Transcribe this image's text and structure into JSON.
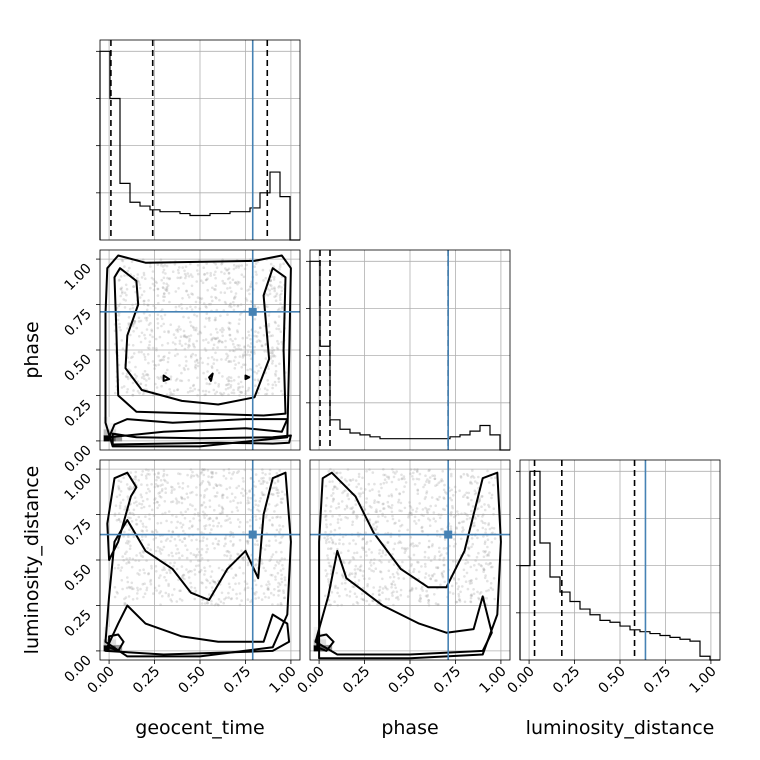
{
  "chart_data": {
    "type": "corner",
    "parameters": [
      "geocent_time",
      "phase",
      "luminosity_distance"
    ],
    "axis_range": [
      -0.05,
      1.05
    ],
    "tick_labels": [
      "0.00",
      "0.25",
      "0.50",
      "0.75",
      "1.00"
    ],
    "tick_values": [
      0,
      0.25,
      0.5,
      0.75,
      1.0
    ],
    "grid": true,
    "colors": {
      "truth": "#4682b4",
      "lines": "#000000",
      "scatter": "#9a9a9a"
    },
    "truths": {
      "geocent_time": 0.79,
      "phase": 0.71,
      "luminosity_distance": 0.64
    },
    "histograms": [
      {
        "parameter": "geocent_time",
        "bin_edges": [
          -0.05,
          0.005,
          0.06,
          0.115,
          0.17,
          0.225,
          0.28,
          0.335,
          0.39,
          0.445,
          0.5,
          0.555,
          0.61,
          0.665,
          0.72,
          0.775,
          0.83,
          0.885,
          0.94,
          0.995,
          1.05
        ],
        "counts": [
          1.0,
          0.75,
          0.3,
          0.2,
          0.18,
          0.16,
          0.15,
          0.15,
          0.14,
          0.13,
          0.13,
          0.14,
          0.14,
          0.15,
          0.15,
          0.17,
          0.25,
          0.36,
          0.23,
          0.0
        ],
        "quantiles": [
          0.01,
          0.24,
          0.87
        ]
      },
      {
        "parameter": "phase",
        "bin_edges": [
          -0.05,
          0.005,
          0.06,
          0.115,
          0.17,
          0.225,
          0.28,
          0.335,
          0.39,
          0.445,
          0.5,
          0.555,
          0.61,
          0.665,
          0.72,
          0.775,
          0.83,
          0.885,
          0.94,
          0.995,
          1.05
        ],
        "counts": [
          1.0,
          0.55,
          0.16,
          0.11,
          0.09,
          0.08,
          0.07,
          0.06,
          0.06,
          0.06,
          0.06,
          0.06,
          0.06,
          0.06,
          0.07,
          0.08,
          0.1,
          0.13,
          0.08,
          0.0
        ],
        "quantiles": [
          0.005,
          0.06,
          0.71
        ]
      },
      {
        "parameter": "luminosity_distance",
        "bin_edges": [
          -0.05,
          0.005,
          0.06,
          0.115,
          0.17,
          0.225,
          0.28,
          0.335,
          0.39,
          0.445,
          0.5,
          0.555,
          0.61,
          0.665,
          0.72,
          0.775,
          0.83,
          0.885,
          0.94,
          0.995,
          1.05
        ],
        "counts": [
          0.5,
          1.0,
          0.62,
          0.44,
          0.36,
          0.31,
          0.27,
          0.24,
          0.21,
          0.2,
          0.18,
          0.16,
          0.15,
          0.14,
          0.13,
          0.12,
          0.11,
          0.1,
          0.02,
          0.0
        ],
        "quantiles": [
          0.03,
          0.18,
          0.58
        ]
      }
    ],
    "density_panels": [
      {
        "x": "geocent_time",
        "y": "phase",
        "contours": [
          [
            [
              0.02,
              -0.02
            ],
            [
              0.3,
              -0.015
            ],
            [
              0.6,
              -0.01
            ],
            [
              0.9,
              -0.015
            ],
            [
              0.99,
              -0.01
            ],
            [
              1.0,
              0.03
            ],
            [
              0.9,
              0.02
            ],
            [
              0.5,
              0.015
            ],
            [
              0.15,
              0.02
            ],
            [
              0.02,
              0.04
            ]
          ],
          [
            [
              0.0,
              0.02
            ],
            [
              0.3,
              0.05
            ],
            [
              0.75,
              0.07
            ],
            [
              0.95,
              0.05
            ],
            [
              0.98,
              0.12
            ],
            [
              0.75,
              0.12
            ],
            [
              0.35,
              0.1
            ],
            [
              0.1,
              0.12
            ],
            [
              0.03,
              0.09
            ]
          ],
          [
            [
              -0.01,
              0.95
            ],
            [
              0.05,
              1.02
            ],
            [
              0.2,
              0.98
            ],
            [
              0.8,
              0.99
            ],
            [
              0.95,
              1.02
            ],
            [
              1.0,
              0.95
            ],
            [
              0.99,
              0.45
            ],
            [
              0.98,
              0.02
            ],
            [
              0.5,
              -0.03
            ],
            [
              0.02,
              -0.03
            ],
            [
              -0.02,
              0.1
            ],
            [
              -0.02,
              0.7
            ]
          ],
          [
            [
              0.03,
              0.9
            ],
            [
              0.06,
              0.95
            ],
            [
              0.15,
              0.88
            ],
            [
              0.16,
              0.75
            ],
            [
              0.1,
              0.58
            ],
            [
              0.09,
              0.4
            ],
            [
              0.18,
              0.28
            ],
            [
              0.4,
              0.22
            ],
            [
              0.6,
              0.2
            ],
            [
              0.8,
              0.24
            ],
            [
              0.88,
              0.45
            ],
            [
              0.85,
              0.8
            ],
            [
              0.9,
              0.95
            ],
            [
              0.97,
              0.9
            ],
            [
              0.96,
              0.5
            ],
            [
              0.97,
              0.15
            ],
            [
              0.85,
              0.14
            ],
            [
              0.5,
              0.15
            ],
            [
              0.15,
              0.16
            ],
            [
              0.05,
              0.25
            ],
            [
              0.04,
              0.6
            ]
          ],
          [
            [
              0.3,
              0.36
            ],
            [
              0.33,
              0.34
            ],
            [
              0.3,
              0.33
            ]
          ],
          [
            [
              0.55,
              0.35
            ],
            [
              0.57,
              0.37
            ],
            [
              0.56,
              0.33
            ]
          ],
          [
            [
              0.75,
              0.36
            ],
            [
              0.77,
              0.35
            ],
            [
              0.75,
              0.34
            ]
          ]
        ]
      },
      {
        "x": "geocent_time",
        "y": "luminosity_distance",
        "contours": [
          [
            [
              0.0,
              0.02
            ],
            [
              0.05,
              0.0
            ],
            [
              0.08,
              0.05
            ],
            [
              0.05,
              0.09
            ],
            [
              0.0,
              0.08
            ]
          ],
          [
            [
              -0.02,
              0.0
            ],
            [
              0.3,
              -0.02
            ],
            [
              0.6,
              -0.01
            ],
            [
              0.9,
              0.0
            ],
            [
              0.99,
              0.05
            ],
            [
              0.98,
              0.15
            ],
            [
              0.9,
              0.2
            ],
            [
              0.85,
              0.05
            ],
            [
              0.6,
              0.05
            ],
            [
              0.4,
              0.08
            ],
            [
              0.2,
              0.15
            ],
            [
              0.1,
              0.25
            ],
            [
              0.05,
              0.15
            ]
          ],
          [
            [
              0.0,
              0.3
            ],
            [
              0.03,
              0.6
            ],
            [
              0.1,
              0.72
            ],
            [
              0.2,
              0.55
            ],
            [
              0.35,
              0.45
            ],
            [
              0.45,
              0.32
            ],
            [
              0.55,
              0.28
            ],
            [
              0.65,
              0.45
            ],
            [
              0.75,
              0.55
            ],
            [
              0.82,
              0.4
            ],
            [
              0.85,
              0.75
            ],
            [
              0.9,
              0.95
            ],
            [
              0.97,
              0.98
            ],
            [
              1.0,
              0.6
            ],
            [
              0.98,
              0.2
            ],
            [
              0.9,
              0.02
            ],
            [
              0.5,
              -0.03
            ],
            [
              0.1,
              -0.03
            ],
            [
              -0.02,
              0.05
            ]
          ],
          [
            [
              -0.01,
              0.7
            ],
            [
              0.03,
              0.95
            ],
            [
              0.1,
              0.98
            ],
            [
              0.15,
              0.9
            ],
            [
              0.12,
              0.85
            ],
            [
              0.05,
              0.6
            ],
            [
              0.0,
              0.5
            ]
          ]
        ]
      },
      {
        "x": "phase",
        "y": "luminosity_distance",
        "contours": [
          [
            [
              -0.01,
              0.02
            ],
            [
              0.04,
              0.0
            ],
            [
              0.08,
              0.05
            ],
            [
              0.04,
              0.09
            ],
            [
              -0.01,
              0.08
            ]
          ],
          [
            [
              -0.02,
              0.05
            ],
            [
              0.05,
              0.3
            ],
            [
              0.1,
              0.55
            ],
            [
              0.15,
              0.4
            ],
            [
              0.35,
              0.25
            ],
            [
              0.55,
              0.15
            ],
            [
              0.7,
              0.1
            ],
            [
              0.85,
              0.12
            ],
            [
              0.9,
              0.3
            ],
            [
              0.95,
              0.1
            ],
            [
              0.9,
              0.0
            ],
            [
              0.5,
              -0.02
            ],
            [
              0.1,
              -0.02
            ]
          ],
          [
            [
              0.0,
              0.6
            ],
            [
              0.02,
              0.95
            ],
            [
              0.07,
              0.98
            ],
            [
              0.2,
              0.85
            ],
            [
              0.3,
              0.65
            ],
            [
              0.45,
              0.45
            ],
            [
              0.6,
              0.35
            ],
            [
              0.7,
              0.35
            ],
            [
              0.8,
              0.55
            ],
            [
              0.85,
              0.75
            ],
            [
              0.9,
              0.95
            ],
            [
              0.98,
              0.98
            ],
            [
              1.0,
              0.6
            ],
            [
              0.98,
              0.2
            ],
            [
              0.9,
              -0.02
            ],
            [
              0.5,
              -0.04
            ],
            [
              0.0,
              -0.04
            ]
          ]
        ]
      }
    ]
  }
}
